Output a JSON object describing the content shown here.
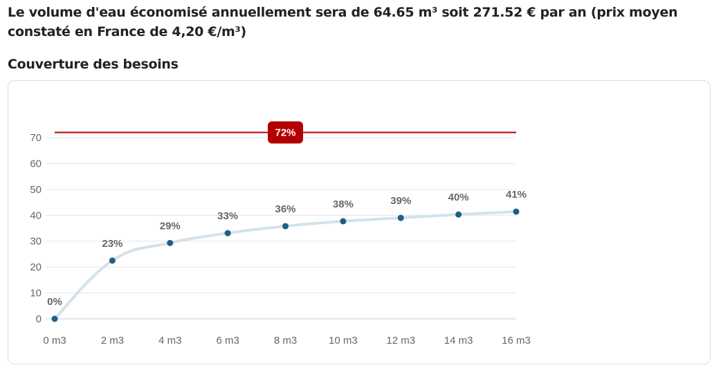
{
  "summary": "Le volume d'eau économisé annuellement sera de 64.65 m³ soit 271.52 € par an (prix moyen constaté en France de 4,20 €/m³)",
  "section_title": "Couverture des besoins",
  "chart_data": {
    "type": "line",
    "x": [
      0,
      2,
      4,
      6,
      8,
      10,
      12,
      14,
      16
    ],
    "x_tick_labels": [
      "0 m3",
      "2 m3",
      "4 m3",
      "6 m3",
      "8 m3",
      "10 m3",
      "12 m3",
      "14 m3",
      "16 m3"
    ],
    "values": [
      0,
      22.5,
      29.3,
      33.1,
      35.8,
      37.7,
      39.0,
      40.3,
      41.4
    ],
    "data_labels": [
      "0%",
      "23%",
      "29%",
      "33%",
      "36%",
      "38%",
      "39%",
      "40%",
      "41%"
    ],
    "y_ticks": [
      0,
      10,
      20,
      30,
      40,
      50,
      60,
      70
    ],
    "ylim": [
      0,
      70
    ],
    "xlim": [
      0,
      16
    ],
    "grid": true,
    "threshold": {
      "value": 72,
      "label": "72%",
      "color": "#b30000"
    },
    "line_color": "#d3e2ea",
    "marker_color": "#1f5f86"
  }
}
